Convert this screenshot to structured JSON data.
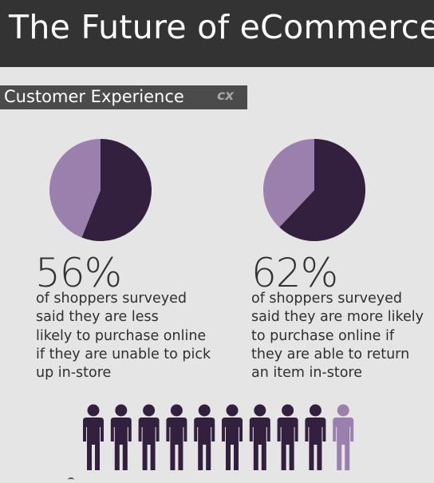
{
  "header": {
    "title": "The Future of eCommerce"
  },
  "section": {
    "label": "Customer Experience",
    "badge": "cx"
  },
  "colors": {
    "dark_purple": "#33203f",
    "light_purple": "#9b7fad",
    "header_bg": "#333333"
  },
  "stats": [
    {
      "value": "56%",
      "lines": [
        "of shoppers surveyed",
        "said they are less",
        "likely to purchase online",
        "if they are unable to pick",
        "up in-store"
      ]
    },
    {
      "value": "62%",
      "lines": [
        "of shoppers surveyed",
        "said they are more likely",
        "to purchase online if",
        "they are able to return",
        "an item in-store"
      ]
    }
  ],
  "chart_data": [
    {
      "type": "pie",
      "title": "",
      "slices": [
        {
          "value": 56,
          "color": "#33203f"
        },
        {
          "value": 44,
          "color": "#9b7fad"
        }
      ]
    },
    {
      "type": "pie",
      "title": "",
      "slices": [
        {
          "value": 62,
          "color": "#33203f"
        },
        {
          "value": 38,
          "color": "#9b7fad"
        }
      ]
    },
    {
      "type": "pictograph",
      "title": "",
      "total_icons": 10,
      "highlighted_icons": 9,
      "highlight_color": "#33203f",
      "rest_color": "#9b7fad"
    }
  ]
}
